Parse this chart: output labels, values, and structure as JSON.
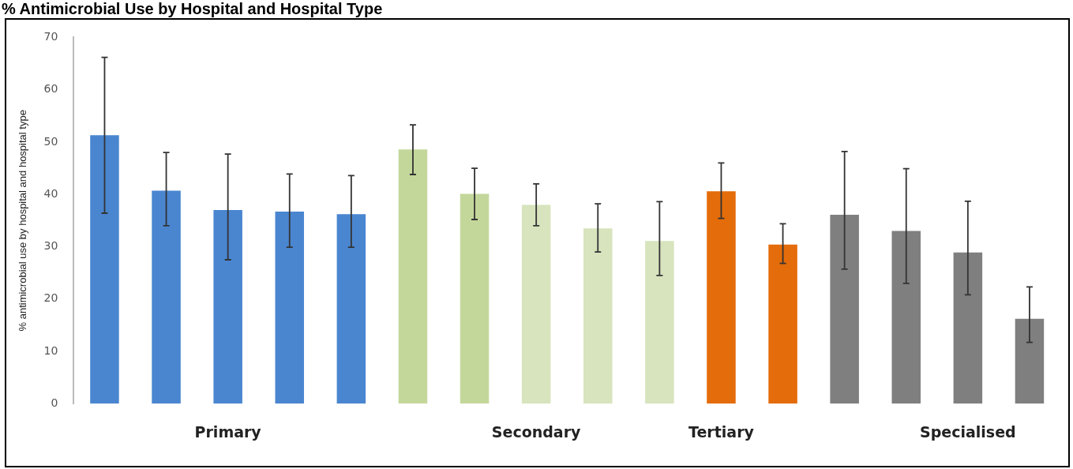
{
  "chart_data": {
    "type": "bar",
    "title": "% Antimicrobial Use by Hospital and Hospital Type",
    "ylabel": "% antimicrobial use by hospital and hospital type",
    "categories": [
      null,
      null,
      "Primary",
      null,
      null,
      null,
      null,
      "Secondary",
      null,
      null,
      "Tertiary",
      null,
      null,
      null,
      "Specialised",
      null
    ],
    "values": [
      51.3,
      40.7,
      37.0,
      36.7,
      36.2,
      48.6,
      40.1,
      38.0,
      33.5,
      31.1,
      40.6,
      30.4,
      36.1,
      33.0,
      28.9,
      16.2
    ],
    "colors": [
      "#4a86d0",
      "#4a86d0",
      "#4a86d0",
      "#4a86d0",
      "#4a86d0",
      "#c4d79b",
      "#c4d79b",
      "#d7e4bd",
      "#d7e4bd",
      "#d7e4bd",
      "#e46c0a",
      "#e46c0a",
      "#7f7f7f",
      "#7f7f7f",
      "#7f7f7f",
      "#7f7f7f"
    ],
    "errors": [
      [
        36.4,
        66.2
      ],
      [
        34.0,
        48.0
      ],
      [
        27.5,
        47.7
      ],
      [
        29.9,
        43.9
      ],
      [
        29.9,
        43.6
      ],
      [
        43.8,
        53.3
      ],
      [
        35.2,
        45.0
      ],
      [
        34.0,
        42.0
      ],
      [
        29.0,
        38.2
      ],
      [
        24.5,
        38.6
      ],
      [
        35.4,
        46.0
      ],
      [
        26.8,
        34.4
      ],
      [
        25.7,
        48.2
      ],
      [
        23.0,
        44.9
      ],
      [
        20.8,
        38.7
      ],
      [
        11.7,
        22.3
      ]
    ],
    "ylim": [
      0,
      70
    ],
    "yticks": [
      0,
      10,
      20,
      30,
      40,
      50,
      60,
      70
    ],
    "grid": false,
    "legend": false
  }
}
